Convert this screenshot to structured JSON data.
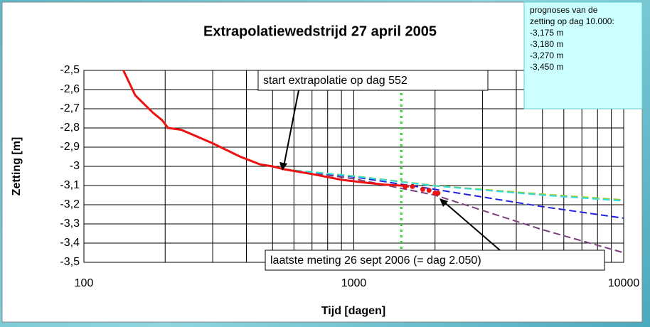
{
  "chart_data": {
    "type": "line",
    "title": "Extrapolatiewedstrijd 27 april 2005",
    "xlabel": "Tijd [dagen]",
    "ylabel": "Zetting [m]",
    "xscale": "log",
    "xlim": [
      100,
      10000
    ],
    "xticks": [
      100,
      1000,
      10000
    ],
    "xminorticks": [
      200,
      300,
      400,
      500,
      600,
      700,
      800,
      900,
      2000,
      3000,
      4000,
      5000,
      6000,
      7000,
      8000,
      9000
    ],
    "ylim": [
      -3.5,
      -2.5
    ],
    "yticks": [
      {
        "value": -2.5,
        "label": "-2,5"
      },
      {
        "value": -2.6,
        "label": "-2,6"
      },
      {
        "value": -2.7,
        "label": "-2,7"
      },
      {
        "value": -2.8,
        "label": "-2,8"
      },
      {
        "value": -2.9,
        "label": "-2,9"
      },
      -3,
      {
        "value": -3.1,
        "label": "-3,1"
      },
      {
        "value": -3.2,
        "label": "-3,2"
      },
      {
        "value": -3.3,
        "label": "-3,3"
      },
      {
        "value": -3.4,
        "label": "-3,4"
      },
      {
        "value": -3.5,
        "label": "-3,5"
      }
    ],
    "grid": true,
    "vline": {
      "x": 1500,
      "color": "#22dd22"
    },
    "series": [
      {
        "color": "#7b3f7b",
        "dash": true,
        "x": [
          552,
          1000,
          2000,
          5000,
          10000
        ],
        "values": [
          -3.015,
          -3.065,
          -3.15,
          -3.33,
          -3.45
        ]
      },
      {
        "color": "#2222dd",
        "dash": true,
        "x": [
          552,
          1000,
          2000,
          5000,
          10000
        ],
        "values": [
          -3.015,
          -3.055,
          -3.12,
          -3.21,
          -3.27
        ]
      },
      {
        "color": "#99cc33",
        "dash": true,
        "x": [
          552,
          1000,
          2000,
          5000,
          10000
        ],
        "values": [
          -3.015,
          -3.05,
          -3.1,
          -3.145,
          -3.175
        ]
      },
      {
        "color": "#33dddd",
        "dash": true,
        "x": [
          552,
          1000,
          2000,
          5000,
          10000
        ],
        "values": [
          -3.015,
          -3.052,
          -3.102,
          -3.15,
          -3.18
        ]
      },
      {
        "color": "#ee1111",
        "dash": false,
        "x": [
          140,
          155,
          180,
          195,
          205,
          230,
          300,
          380,
          450,
          500,
          552,
          700,
          900,
          1100,
          1300,
          1500,
          1600
        ],
        "values": [
          -2.5,
          -2.63,
          -2.72,
          -2.76,
          -2.8,
          -2.81,
          -2.88,
          -2.95,
          -2.99,
          -3.0,
          -3.015,
          -3.04,
          -3.07,
          -3.085,
          -3.095,
          -3.1,
          -3.105
        ]
      },
      {
        "color": "#ee1111",
        "markers": true,
        "x": [
          1550,
          1650,
          1800,
          1900,
          2000,
          2050
        ],
        "values": [
          -3.105,
          -3.105,
          -3.12,
          -3.125,
          -3.14,
          -3.14
        ]
      }
    ],
    "annotations": [
      "start extrapolatie op dag 552",
      "laatste meting 26 sept 2006 (= dag 2.050)"
    ],
    "info": {
      "heading": [
        "prognoses van de",
        "zetting op dag 10.000:"
      ],
      "lines": [
        "-3,175 m",
        "-3,180 m",
        "-3,270 m",
        "-3,450 m"
      ]
    }
  }
}
